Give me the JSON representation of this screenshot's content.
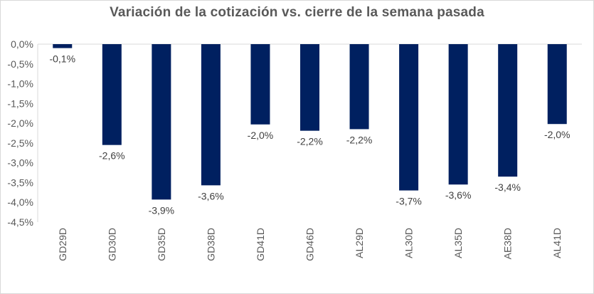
{
  "chart_data": {
    "type": "bar",
    "title": "Variación de la cotización vs. cierre de la semana pasada",
    "categories": [
      "GD29D",
      "GD30D",
      "GD35D",
      "GD38D",
      "GD41D",
      "GD46D",
      "AL29D",
      "AL30D",
      "AL35D",
      "AE38D",
      "AL41D"
    ],
    "values": [
      -0.1,
      -2.55,
      -3.93,
      -3.57,
      -2.03,
      -2.19,
      -2.15,
      -3.7,
      -3.55,
      -3.35,
      -2.02
    ],
    "data_labels": [
      "-0,1%",
      "-2,6%",
      "-3,9%",
      "-3,6%",
      "-2,0%",
      "-2,2%",
      "-2,2%",
      "-3,7%",
      "-3,6%",
      "-3,4%",
      "-2,0%"
    ],
    "y_ticks": [
      0,
      -0.5,
      -1.0,
      -1.5,
      -2.0,
      -2.5,
      -3.0,
      -3.5,
      -4.0,
      -4.5
    ],
    "y_tick_labels": [
      "0,0%",
      "-0,5%",
      "-1,0%",
      "-1,5%",
      "-2,0%",
      "-2,5%",
      "-3,0%",
      "-3,5%",
      "-4,0%",
      "-4,5%"
    ],
    "ylim": [
      -4.5,
      0
    ],
    "xlabel": "",
    "ylabel": "",
    "grid": false,
    "legend": "none",
    "bar_color": "#002060",
    "axis_color": "#d9d9d9"
  }
}
